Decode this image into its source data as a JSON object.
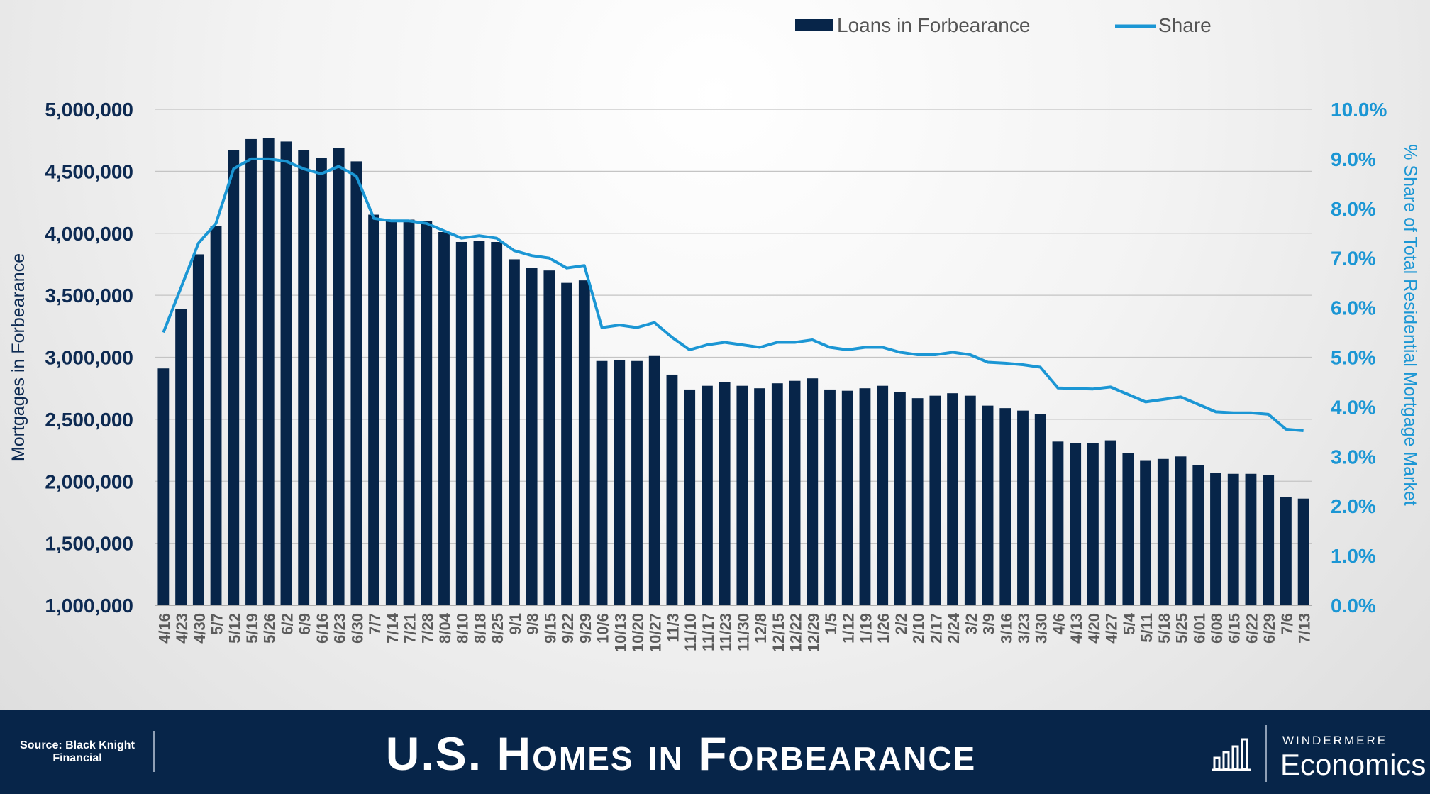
{
  "chart_data": {
    "type": "bar",
    "title": "U.S. Homes in Forbearance",
    "xlabel": "",
    "ylabel": "Mortgages in Forbearance",
    "y2label": "% Share of Total Residential Mortgage Market",
    "ylim": [
      1000000,
      5000000
    ],
    "y2lim": [
      0,
      10
    ],
    "grid": true,
    "legend_position": "top",
    "yticks": [
      "1,000,000",
      "1,500,000",
      "2,000,000",
      "2,500,000",
      "3,000,000",
      "3,500,000",
      "4,000,000",
      "4,500,000",
      "5,000,000"
    ],
    "y2ticks": [
      "0.0%",
      "1.0%",
      "2.0%",
      "3.0%",
      "4.0%",
      "5.0%",
      "6.0%",
      "7.0%",
      "8.0%",
      "9.0%",
      "10.0%"
    ],
    "categories": [
      "4/16",
      "4/23",
      "4/30",
      "5/7",
      "5/12",
      "5/19",
      "5/26",
      "6/2",
      "6/9",
      "6/16",
      "6/23",
      "6/30",
      "7/7",
      "7/14",
      "7/21",
      "7/28",
      "8/04",
      "8/10",
      "8/18",
      "8/25",
      "9/1",
      "9/8",
      "9/15",
      "9/22",
      "9/29",
      "10/6",
      "10/13",
      "10/20",
      "10/27",
      "11/3",
      "11/10",
      "11/17",
      "11/23",
      "11/30",
      "12/8",
      "12/15",
      "12/22",
      "12/29",
      "1/5",
      "1/12",
      "1/19",
      "1/26",
      "2/2",
      "2/10",
      "2/17",
      "2/24",
      "3/2",
      "3/9",
      "3/16",
      "3/23",
      "3/30",
      "4/6",
      "4/13",
      "4/20",
      "4/27",
      "5/4",
      "5/11",
      "5/18",
      "5/25",
      "6/01",
      "6/08",
      "6/15",
      "6/22",
      "6/29",
      "7/6",
      "7/13"
    ],
    "series": [
      {
        "name": "Loans in Forbearance",
        "type": "bar",
        "color": "#072549",
        "values": [
          2910000,
          3390000,
          3830000,
          4060000,
          4670000,
          4760000,
          4770000,
          4740000,
          4670000,
          4610000,
          4690000,
          4580000,
          4150000,
          4100000,
          4110000,
          4100000,
          4010000,
          3930000,
          3940000,
          3930000,
          3790000,
          3720000,
          3700000,
          3600000,
          3620000,
          2970000,
          2980000,
          2970000,
          3010000,
          2860000,
          2740000,
          2770000,
          2800000,
          2770000,
          2750000,
          2790000,
          2810000,
          2830000,
          2740000,
          2730000,
          2750000,
          2770000,
          2720000,
          2670000,
          2690000,
          2710000,
          2690000,
          2610000,
          2590000,
          2570000,
          2540000,
          2320000,
          2310000,
          2310000,
          2330000,
          2230000,
          2170000,
          2180000,
          2200000,
          2130000,
          2070000,
          2060000,
          2060000,
          2050000,
          1870000,
          1860000
        ]
      },
      {
        "name": "Share",
        "type": "line",
        "color": "#1b96d4",
        "values": [
          5.5,
          6.4,
          7.3,
          7.7,
          8.8,
          9.0,
          9.0,
          8.95,
          8.8,
          8.7,
          8.85,
          8.65,
          7.8,
          7.75,
          7.75,
          7.7,
          7.55,
          7.4,
          7.45,
          7.4,
          7.15,
          7.05,
          7.0,
          6.8,
          6.85,
          5.6,
          5.65,
          5.6,
          5.7,
          5.4,
          5.15,
          5.25,
          5.3,
          5.25,
          5.2,
          5.3,
          5.3,
          5.35,
          5.2,
          5.15,
          5.2,
          5.2,
          5.1,
          5.05,
          5.05,
          5.1,
          5.05,
          4.9,
          4.88,
          4.85,
          4.8,
          4.38,
          4.37,
          4.36,
          4.4,
          4.25,
          4.1,
          4.15,
          4.2,
          4.05,
          3.9,
          3.88,
          3.88,
          3.85,
          3.55,
          3.52
        ]
      }
    ]
  },
  "footer": {
    "source": "Source: Black Knight Financial",
    "title": "U.S. Homes in Forbearance",
    "brand_top": "WINDERMERE",
    "brand_bottom": "Economics"
  },
  "colors": {
    "navy": "#072549",
    "blue": "#1b96d4",
    "axis_text": "#0d2a52"
  }
}
